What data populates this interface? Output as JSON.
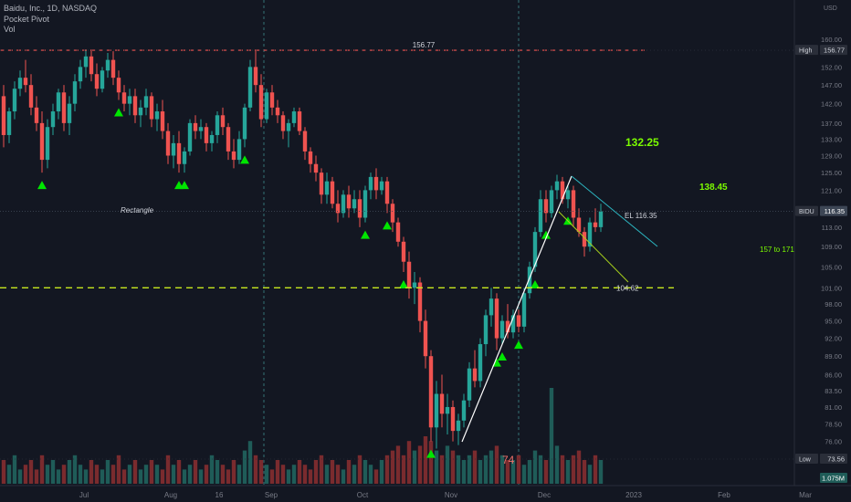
{
  "legend": {
    "title": "Baidu, Inc., 1D, NASDAQ",
    "indicator1": "Pocket Pivot",
    "indicator2": "Vol"
  },
  "colors": {
    "background": "#131722",
    "up": "#26a69a",
    "down": "#ef5350",
    "volume_up": "#1f5c58",
    "volume_down": "#7a2b2e",
    "pivot": "#00e600",
    "dash_red": "#ef5350",
    "dash_green": "#c8e81e",
    "annotation_green": "#7cfc00",
    "trend_white": "#ffffff",
    "channel_teal": "#2cb5c0",
    "channel_yellow": "#a6d01c",
    "axis_text": "#787b86"
  },
  "chart_data": {
    "type": "candlestick",
    "currency": "USD",
    "price_axis": {
      "scale": "log",
      "ylim": [
        73.0,
        172.0
      ],
      "ticks": [
        "160.00",
        "152.00",
        "147.00",
        "142.00",
        "137.00",
        "133.00",
        "129.00",
        "125.00",
        "121.00",
        "116.35",
        "113.00",
        "109.00",
        "105.00",
        "101.00",
        "98.00",
        "95.00",
        "92.00",
        "89.00",
        "86.00",
        "83.50",
        "81.00",
        "78.50",
        "76.00",
        "73.56"
      ]
    },
    "time_axis": {
      "labels": [
        "Jul",
        "Aug",
        "16",
        "Sep",
        "Oct",
        "Nov",
        "Dec",
        "2023",
        "Feb",
        "Mar"
      ]
    },
    "candles": [
      {
        "o": 144.0,
        "h": 147.0,
        "l": 131.0,
        "c": 134.0
      },
      {
        "o": 134.0,
        "h": 141.0,
        "l": 132.0,
        "c": 140.0
      },
      {
        "o": 140.0,
        "h": 148.0,
        "l": 138.0,
        "c": 146.0
      },
      {
        "o": 146.0,
        "h": 151.0,
        "l": 144.0,
        "c": 149.0
      },
      {
        "o": 149.0,
        "h": 154.0,
        "l": 145.0,
        "c": 147.0
      },
      {
        "o": 147.0,
        "h": 150.0,
        "l": 139.0,
        "c": 141.0
      },
      {
        "o": 141.0,
        "h": 144.0,
        "l": 135.0,
        "c": 137.0
      },
      {
        "o": 137.0,
        "h": 140.0,
        "l": 125.0,
        "c": 128.0
      },
      {
        "o": 128.0,
        "h": 138.0,
        "l": 126.0,
        "c": 136.0
      },
      {
        "o": 136.0,
        "h": 142.0,
        "l": 134.0,
        "c": 140.0
      },
      {
        "o": 140.0,
        "h": 146.0,
        "l": 138.0,
        "c": 145.0
      },
      {
        "o": 145.0,
        "h": 147.0,
        "l": 135.0,
        "c": 137.0
      },
      {
        "o": 137.0,
        "h": 144.0,
        "l": 134.0,
        "c": 142.0
      },
      {
        "o": 142.0,
        "h": 150.0,
        "l": 140.0,
        "c": 148.0
      },
      {
        "o": 148.0,
        "h": 154.0,
        "l": 146.0,
        "c": 152.0
      },
      {
        "o": 152.0,
        "h": 157.0,
        "l": 149.0,
        "c": 155.0
      },
      {
        "o": 155.0,
        "h": 157.0,
        "l": 148.0,
        "c": 150.0
      },
      {
        "o": 150.0,
        "h": 153.0,
        "l": 144.0,
        "c": 146.0
      },
      {
        "o": 146.0,
        "h": 152.0,
        "l": 145.0,
        "c": 151.0
      },
      {
        "o": 151.0,
        "h": 156.0,
        "l": 149.0,
        "c": 154.0
      },
      {
        "o": 154.0,
        "h": 156.5,
        "l": 147.0,
        "c": 149.0
      },
      {
        "o": 149.0,
        "h": 151.0,
        "l": 143.0,
        "c": 145.0
      },
      {
        "o": 145.0,
        "h": 147.0,
        "l": 140.0,
        "c": 142.0
      },
      {
        "o": 142.0,
        "h": 146.0,
        "l": 139.0,
        "c": 144.0
      },
      {
        "o": 144.0,
        "h": 146.0,
        "l": 137.0,
        "c": 139.0
      },
      {
        "o": 139.0,
        "h": 143.0,
        "l": 136.0,
        "c": 141.0
      },
      {
        "o": 141.0,
        "h": 146.0,
        "l": 139.0,
        "c": 144.0
      },
      {
        "o": 144.0,
        "h": 145.0,
        "l": 136.0,
        "c": 138.0
      },
      {
        "o": 138.0,
        "h": 142.0,
        "l": 135.0,
        "c": 140.0
      },
      {
        "o": 140.0,
        "h": 143.0,
        "l": 133.0,
        "c": 135.0
      },
      {
        "o": 135.0,
        "h": 137.0,
        "l": 127.0,
        "c": 129.0
      },
      {
        "o": 129.0,
        "h": 134.0,
        "l": 126.0,
        "c": 132.0
      },
      {
        "o": 132.0,
        "h": 135.0,
        "l": 125.0,
        "c": 127.0
      },
      {
        "o": 127.0,
        "h": 131.0,
        "l": 125.0,
        "c": 130.0
      },
      {
        "o": 130.0,
        "h": 138.0,
        "l": 129.0,
        "c": 137.0
      },
      {
        "o": 137.0,
        "h": 139.0,
        "l": 133.0,
        "c": 135.0
      },
      {
        "o": 135.0,
        "h": 138.0,
        "l": 133.0,
        "c": 136.0
      },
      {
        "o": 136.0,
        "h": 137.0,
        "l": 130.0,
        "c": 132.0
      },
      {
        "o": 132.0,
        "h": 135.0,
        "l": 130.0,
        "c": 134.0
      },
      {
        "o": 134.0,
        "h": 140.0,
        "l": 132.0,
        "c": 139.0
      },
      {
        "o": 139.0,
        "h": 141.0,
        "l": 134.0,
        "c": 136.0
      },
      {
        "o": 136.0,
        "h": 137.0,
        "l": 128.0,
        "c": 130.0
      },
      {
        "o": 130.0,
        "h": 133.0,
        "l": 126.0,
        "c": 128.0
      },
      {
        "o": 128.0,
        "h": 135.0,
        "l": 127.0,
        "c": 133.0
      },
      {
        "o": 133.0,
        "h": 142.0,
        "l": 131.0,
        "c": 141.0
      },
      {
        "o": 141.0,
        "h": 154.0,
        "l": 140.0,
        "c": 152.0
      },
      {
        "o": 152.0,
        "h": 157.0,
        "l": 145.0,
        "c": 147.0
      },
      {
        "o": 147.0,
        "h": 150.0,
        "l": 136.0,
        "c": 138.0
      },
      {
        "o": 138.0,
        "h": 146.0,
        "l": 137.0,
        "c": 145.0
      },
      {
        "o": 145.0,
        "h": 147.0,
        "l": 139.0,
        "c": 141.0
      },
      {
        "o": 141.0,
        "h": 143.0,
        "l": 137.0,
        "c": 139.0
      },
      {
        "o": 139.0,
        "h": 140.0,
        "l": 133.0,
        "c": 135.0
      },
      {
        "o": 135.0,
        "h": 138.0,
        "l": 131.0,
        "c": 137.0
      },
      {
        "o": 137.0,
        "h": 141.0,
        "l": 136.0,
        "c": 140.0
      },
      {
        "o": 140.0,
        "h": 141.0,
        "l": 134.0,
        "c": 135.0
      },
      {
        "o": 135.0,
        "h": 136.0,
        "l": 128.0,
        "c": 130.0
      },
      {
        "o": 130.0,
        "h": 131.0,
        "l": 125.0,
        "c": 127.0
      },
      {
        "o": 127.0,
        "h": 129.0,
        "l": 123.0,
        "c": 125.0
      },
      {
        "o": 125.0,
        "h": 126.0,
        "l": 118.0,
        "c": 120.0
      },
      {
        "o": 120.0,
        "h": 125.0,
        "l": 118.0,
        "c": 123.0
      },
      {
        "o": 123.0,
        "h": 124.0,
        "l": 117.0,
        "c": 118.0
      },
      {
        "o": 118.0,
        "h": 121.0,
        "l": 114.0,
        "c": 116.0
      },
      {
        "o": 116.0,
        "h": 121.0,
        "l": 115.0,
        "c": 120.0
      },
      {
        "o": 120.0,
        "h": 122.0,
        "l": 115.0,
        "c": 117.0
      },
      {
        "o": 117.0,
        "h": 121.0,
        "l": 116.0,
        "c": 119.0
      },
      {
        "o": 119.0,
        "h": 121.0,
        "l": 113.0,
        "c": 115.0
      },
      {
        "o": 115.0,
        "h": 122.0,
        "l": 114.0,
        "c": 121.0
      },
      {
        "o": 121.0,
        "h": 125.0,
        "l": 119.0,
        "c": 124.0
      },
      {
        "o": 124.0,
        "h": 126.0,
        "l": 119.0,
        "c": 121.0
      },
      {
        "o": 121.0,
        "h": 124.0,
        "l": 120.0,
        "c": 123.0
      },
      {
        "o": 123.0,
        "h": 124.0,
        "l": 116.0,
        "c": 118.0
      },
      {
        "o": 118.0,
        "h": 119.0,
        "l": 112.0,
        "c": 114.0
      },
      {
        "o": 114.0,
        "h": 115.0,
        "l": 109.0,
        "c": 110.0
      },
      {
        "o": 110.0,
        "h": 111.0,
        "l": 104.0,
        "c": 106.0
      },
      {
        "o": 106.0,
        "h": 108.0,
        "l": 99.0,
        "c": 101.0
      },
      {
        "o": 101.0,
        "h": 104.0,
        "l": 98.0,
        "c": 102.0
      },
      {
        "o": 102.0,
        "h": 103.0,
        "l": 93.0,
        "c": 95.0
      },
      {
        "o": 95.0,
        "h": 97.0,
        "l": 87.0,
        "c": 89.0
      },
      {
        "o": 89.0,
        "h": 90.0,
        "l": 76.0,
        "c": 78.0
      },
      {
        "o": 78.0,
        "h": 85.0,
        "l": 75.0,
        "c": 83.0
      },
      {
        "o": 83.0,
        "h": 86.0,
        "l": 78.0,
        "c": 80.0
      },
      {
        "o": 80.0,
        "h": 83.0,
        "l": 77.0,
        "c": 81.0
      },
      {
        "o": 81.0,
        "h": 82.0,
        "l": 76.0,
        "c": 77.5
      },
      {
        "o": 77.5,
        "h": 80.0,
        "l": 75.5,
        "c": 79.0
      },
      {
        "o": 79.0,
        "h": 83.0,
        "l": 78.0,
        "c": 82.0
      },
      {
        "o": 82.0,
        "h": 88.0,
        "l": 81.0,
        "c": 87.0
      },
      {
        "o": 87.0,
        "h": 90.0,
        "l": 84.0,
        "c": 85.0
      },
      {
        "o": 85.0,
        "h": 92.0,
        "l": 84.0,
        "c": 91.0
      },
      {
        "o": 91.0,
        "h": 97.0,
        "l": 89.0,
        "c": 96.0
      },
      {
        "o": 96.0,
        "h": 101.0,
        "l": 94.0,
        "c": 99.0
      },
      {
        "o": 99.0,
        "h": 100.0,
        "l": 90.0,
        "c": 92.0
      },
      {
        "o": 92.0,
        "h": 96.0,
        "l": 91.0,
        "c": 95.0
      },
      {
        "o": 95.0,
        "h": 98.0,
        "l": 92.0,
        "c": 93.0
      },
      {
        "o": 93.0,
        "h": 97.0,
        "l": 92.0,
        "c": 96.0
      },
      {
        "o": 96.0,
        "h": 97.0,
        "l": 93.0,
        "c": 94.0
      },
      {
        "o": 94.0,
        "h": 101.0,
        "l": 93.0,
        "c": 100.0
      },
      {
        "o": 100.0,
        "h": 106.0,
        "l": 99.0,
        "c": 105.0
      },
      {
        "o": 105.0,
        "h": 113.0,
        "l": 104.0,
        "c": 112.0
      },
      {
        "o": 112.0,
        "h": 121.0,
        "l": 111.0,
        "c": 119.0
      },
      {
        "o": 119.0,
        "h": 121.0,
        "l": 114.0,
        "c": 116.0
      },
      {
        "o": 116.0,
        "h": 122.0,
        "l": 115.0,
        "c": 121.0
      },
      {
        "o": 121.0,
        "h": 124.5,
        "l": 119.0,
        "c": 123.0
      },
      {
        "o": 123.0,
        "h": 124.0,
        "l": 118.0,
        "c": 119.0
      },
      {
        "o": 119.0,
        "h": 122.0,
        "l": 117.0,
        "c": 121.0
      },
      {
        "o": 121.0,
        "h": 122.0,
        "l": 113.0,
        "c": 115.0
      },
      {
        "o": 115.0,
        "h": 117.0,
        "l": 111.0,
        "c": 112.0
      },
      {
        "o": 112.0,
        "h": 113.0,
        "l": 107.0,
        "c": 109.0
      },
      {
        "o": 109.0,
        "h": 115.0,
        "l": 108.0,
        "c": 114.0
      },
      {
        "o": 114.0,
        "h": 117.0,
        "l": 112.0,
        "c": 113.0
      },
      {
        "o": 113.0,
        "h": 118.0,
        "l": 112.0,
        "c": 116.35
      }
    ],
    "volume_weights": [
      5,
      4,
      6,
      3,
      4,
      5,
      3,
      6,
      4,
      5,
      3,
      4,
      5,
      6,
      4,
      3,
      5,
      4,
      3,
      5,
      4,
      6,
      3,
      4,
      5,
      3,
      4,
      5,
      4,
      3,
      6,
      4,
      5,
      3,
      4,
      5,
      3,
      4,
      6,
      5,
      4,
      3,
      5,
      4,
      7,
      9,
      6,
      5,
      4,
      3,
      5,
      4,
      3,
      4,
      5,
      4,
      3,
      5,
      6,
      4,
      5,
      4,
      3,
      5,
      4,
      6,
      5,
      4,
      3,
      5,
      6,
      7,
      8,
      6,
      9,
      7,
      8,
      10,
      9,
      7,
      6,
      8,
      7,
      6,
      5,
      6,
      7,
      5,
      6,
      7,
      8,
      6,
      5,
      5,
      6,
      4,
      5,
      7,
      6,
      5,
      7,
      8,
      6,
      5,
      6,
      7,
      5,
      4,
      6,
      5,
      4
    ],
    "volume_spike_index": 100,
    "pocket_pivot_indices": [
      7,
      21,
      32,
      33,
      44,
      66,
      70,
      73,
      78,
      90,
      91,
      94,
      97,
      99,
      103
    ],
    "levels": {
      "high_label": "High",
      "high_value": "156.77",
      "high_line_value": 156.77,
      "low_label": "Low",
      "low_value": "73.56",
      "last_value": "116.35",
      "symbol": "BIDU",
      "volume_value": "1.075M",
      "support_line_value": 101.0
    },
    "annotations": {
      "rect_label": "Rectangle",
      "high_line_label": "156.77",
      "target1": "132.25",
      "target2": "138.45",
      "target3": "157 to 171",
      "el_label": "EL 116.35",
      "support_label": "104.62",
      "low_marker": "74"
    }
  }
}
